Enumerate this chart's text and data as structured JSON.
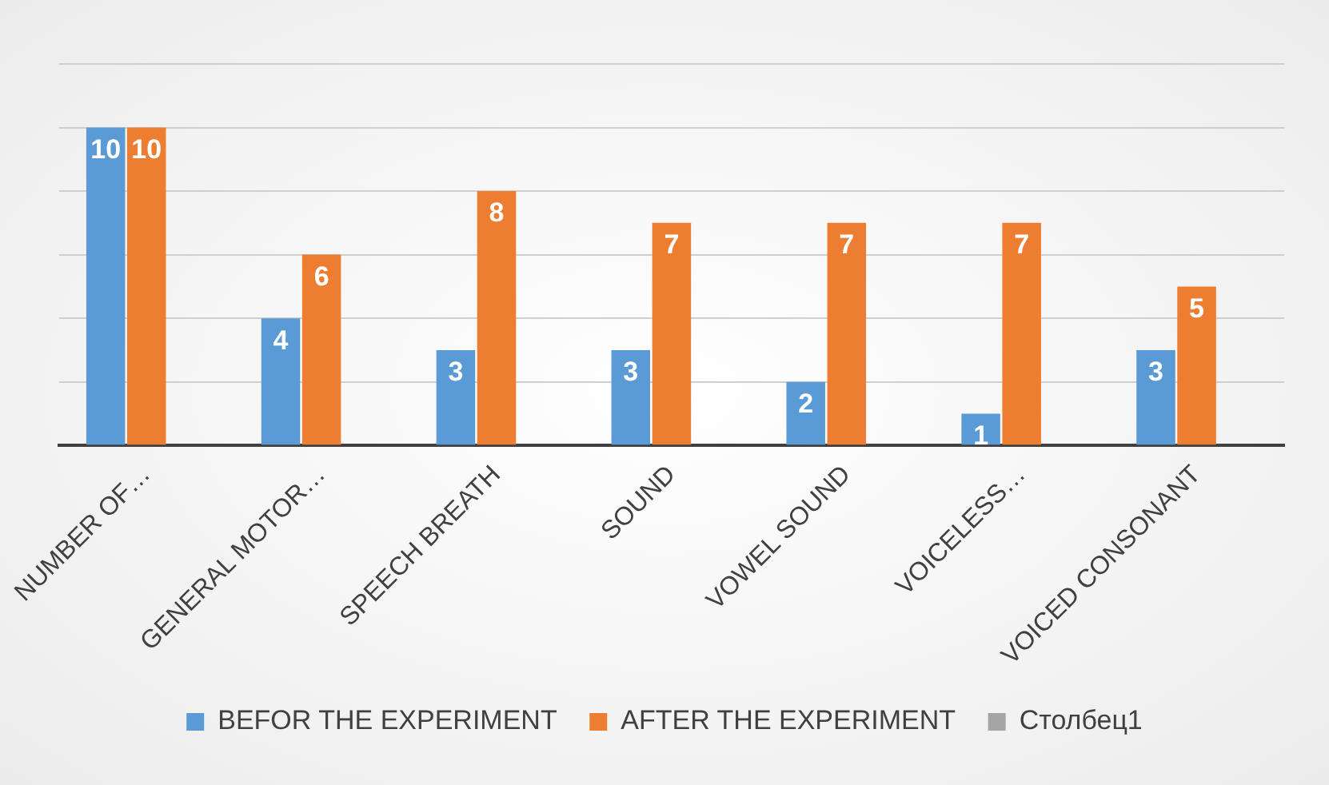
{
  "chart_data": {
    "type": "bar",
    "categories": [
      "NUMBER OF…",
      "GENERAL MOTOR…",
      "SPEECH BREATH",
      "SOUND",
      "VOWEL SOUND",
      "VOICELESS…",
      "VOICED CONSONANT"
    ],
    "series": [
      {
        "name": "BEFOR THE EXPERIMENT",
        "color": "#5b9bd5",
        "values": [
          10,
          4,
          3,
          3,
          2,
          1,
          3
        ]
      },
      {
        "name": "AFTER THE EXPERIMENT",
        "color": "#ed7d31",
        "values": [
          10,
          6,
          8,
          7,
          7,
          7,
          5
        ]
      },
      {
        "name": "Столбец1",
        "color": "#a5a5a5",
        "values": [
          null,
          null,
          null,
          null,
          null,
          null,
          null
        ]
      }
    ],
    "ylim": [
      0,
      12
    ],
    "yticks": [
      {
        "value": 0,
        "label": null
      },
      {
        "value": 2,
        "label": null
      },
      {
        "value": 4,
        "label": null
      },
      {
        "value": 6,
        "label": null
      },
      {
        "value": 8,
        "label": null
      },
      {
        "value": 10,
        "label": null
      },
      {
        "value": 12,
        "label": null
      }
    ],
    "tick_labels": "x",
    "grid": "y",
    "legend": "bottom",
    "data_labels": true
  }
}
